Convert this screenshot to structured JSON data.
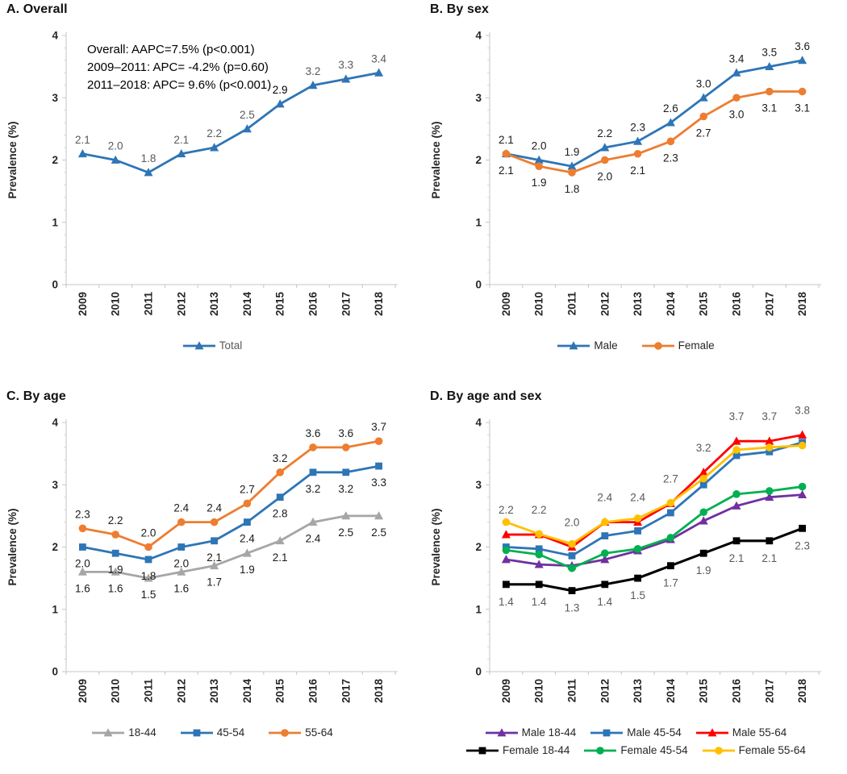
{
  "figure": {
    "y_axis_label": "Prevalence (%)",
    "x_axis_years": [
      "2009",
      "2010",
      "2011",
      "2012",
      "2013",
      "2014",
      "2015",
      "2016",
      "2017",
      "2018"
    ]
  },
  "chart_data": [
    {
      "id": "A",
      "type": "line",
      "title": "A. Overall",
      "x": [
        "2009",
        "2010",
        "2011",
        "2012",
        "2013",
        "2014",
        "2015",
        "2016",
        "2017",
        "2018"
      ],
      "ylabel": "Prevalence (%)",
      "ylim": [
        0,
        4
      ],
      "yticks": [
        0,
        1,
        2,
        3,
        4
      ],
      "grid": false,
      "legend_position": "bottom",
      "legend_text_color": "#595959",
      "annotation": [
        "Overall: AAPC=7.5% (p<0.001)",
        "2009–2011: APC= -4.2% (p=0.60)",
        "2011–2018: APC= 9.6% (p<0.001)"
      ],
      "series": [
        {
          "name": "Total",
          "color": "#2E75B6",
          "marker": "triangle",
          "values": [
            2.1,
            2.0,
            1.8,
            2.1,
            2.2,
            2.5,
            2.9,
            3.2,
            3.3,
            3.4
          ],
          "labels": [
            "2.1",
            "2.0",
            "1.8",
            "2.1",
            "2.2",
            "2.5",
            "2.9",
            "3.2",
            "3.3",
            "3.4"
          ],
          "label_offset": -13,
          "label_color": "#595959",
          "label_color_overrides": {
            "6": "#000000"
          }
        }
      ]
    },
    {
      "id": "B",
      "type": "line",
      "title": "B. By sex",
      "x": [
        "2009",
        "2010",
        "2011",
        "2012",
        "2013",
        "2014",
        "2015",
        "2016",
        "2017",
        "2018"
      ],
      "ylabel": "Prevalence (%)",
      "ylim": [
        0,
        4
      ],
      "yticks": [
        0,
        1,
        2,
        3,
        4
      ],
      "grid": false,
      "legend_position": "bottom",
      "legend_text_color": "#262626",
      "series": [
        {
          "name": "Male",
          "color": "#2E75B6",
          "marker": "triangle",
          "values": [
            2.1,
            2.0,
            1.9,
            2.2,
            2.3,
            2.6,
            3.0,
            3.4,
            3.5,
            3.6
          ],
          "labels": [
            "2.1",
            "2.0",
            "1.9",
            "2.2",
            "2.3",
            "2.6",
            "3.0",
            "3.4",
            "3.5",
            "3.6"
          ],
          "label_offset": -13,
          "label_color": "#1a1a1a"
        },
        {
          "name": "Female",
          "color": "#ED7D31",
          "marker": "circle",
          "values": [
            2.1,
            1.9,
            1.8,
            2.0,
            2.1,
            2.3,
            2.7,
            3.0,
            3.1,
            3.1
          ],
          "labels": [
            "2.1",
            "1.9",
            "1.8",
            "2.0",
            "2.1",
            "2.3",
            "2.7",
            "3.0",
            "3.1",
            "3.1"
          ],
          "label_offset": 25,
          "label_color": "#1a1a1a"
        }
      ]
    },
    {
      "id": "C",
      "type": "line",
      "title": "C. By age",
      "x": [
        "2009",
        "2010",
        "2011",
        "2012",
        "2013",
        "2014",
        "2015",
        "2016",
        "2017",
        "2018"
      ],
      "ylabel": "Prevalence (%)",
      "ylim": [
        0,
        4
      ],
      "yticks": [
        0,
        1,
        2,
        3,
        4
      ],
      "grid": false,
      "legend_position": "bottom",
      "legend_text_color": "#262626",
      "series": [
        {
          "name": "18-44",
          "color": "#A6A6A6",
          "marker": "triangle",
          "values": [
            1.6,
            1.6,
            1.5,
            1.6,
            1.7,
            1.9,
            2.1,
            2.4,
            2.5,
            2.5
          ],
          "labels": [
            "1.6",
            "1.6",
            "1.5",
            "1.6",
            "1.7",
            "1.9",
            "2.1",
            "2.4",
            "2.5",
            "2.5"
          ],
          "label_offset": 25,
          "label_color": "#1a1a1a"
        },
        {
          "name": "45-54",
          "color": "#2E75B6",
          "marker": "square",
          "values": [
            2.0,
            1.9,
            1.8,
            2.0,
            2.1,
            2.4,
            2.8,
            3.2,
            3.2,
            3.3
          ],
          "labels": [
            "2.0",
            "1.9",
            "1.8",
            "2.0",
            "2.1",
            "2.4",
            "2.8",
            "3.2",
            "3.2",
            "3.3"
          ],
          "label_offset": 25,
          "label_color": "#1a1a1a"
        },
        {
          "name": "55-64",
          "color": "#ED7D31",
          "marker": "circle",
          "values": [
            2.3,
            2.2,
            2.0,
            2.4,
            2.4,
            2.7,
            3.2,
            3.6,
            3.6,
            3.7
          ],
          "labels": [
            "2.3",
            "2.2",
            "2.0",
            "2.4",
            "2.4",
            "2.7",
            "3.2",
            "3.6",
            "3.6",
            "3.7"
          ],
          "label_offset": -13,
          "label_color": "#1a1a1a"
        }
      ]
    },
    {
      "id": "D",
      "type": "line",
      "title": "D. By age and sex",
      "x": [
        "2009",
        "2010",
        "2011",
        "2012",
        "2013",
        "2014",
        "2015",
        "2016",
        "2017",
        "2018"
      ],
      "ylabel": "Prevalence (%)",
      "ylim": [
        0,
        4
      ],
      "yticks": [
        0,
        1,
        2,
        3,
        4
      ],
      "grid": false,
      "legend_position": "bottom",
      "legend_text_color": "#262626",
      "legend_rows": [
        [
          0,
          1,
          2
        ],
        [
          3,
          4,
          5
        ]
      ],
      "series": [
        {
          "name": "Male 18-44",
          "color": "#7030A0",
          "marker": "triangle",
          "values": [
            1.8,
            1.72,
            1.7,
            1.8,
            1.94,
            2.12,
            2.42,
            2.66,
            2.8,
            2.84
          ],
          "labels": null
        },
        {
          "name": "Male 45-54",
          "color": "#2E75B6",
          "marker": "square",
          "values": [
            2.0,
            1.97,
            1.86,
            2.18,
            2.26,
            2.55,
            3.0,
            3.47,
            3.53,
            3.68
          ],
          "labels": null
        },
        {
          "name": "Male 55-64",
          "color": "#FF0000",
          "marker": "triangle",
          "values": [
            2.2,
            2.2,
            2.0,
            2.4,
            2.4,
            2.7,
            3.2,
            3.7,
            3.7,
            3.8
          ],
          "labels": [
            "2.2",
            "2.2",
            "2.0",
            "2.4",
            "2.4",
            "2.7",
            "3.2",
            "3.7",
            "3.7",
            "3.8"
          ],
          "label_offset": -26,
          "label_color": "#595959"
        },
        {
          "name": "Female 18-44",
          "color": "#000000",
          "marker": "square",
          "values": [
            1.4,
            1.4,
            1.3,
            1.4,
            1.5,
            1.7,
            1.9,
            2.1,
            2.1,
            2.3
          ],
          "labels": [
            "1.4",
            "1.4",
            "1.3",
            "1.4",
            "1.5",
            "1.7",
            "1.9",
            "2.1",
            "2.1",
            "2.3"
          ],
          "label_offset": 26,
          "label_color": "#595959"
        },
        {
          "name": "Female 45-54",
          "color": "#00B050",
          "marker": "circle",
          "values": [
            1.95,
            1.88,
            1.66,
            1.9,
            1.97,
            2.15,
            2.56,
            2.85,
            2.9,
            2.97
          ],
          "labels": null
        },
        {
          "name": "Female 55-64",
          "color": "#FFC000",
          "marker": "circle",
          "values": [
            2.4,
            2.21,
            2.05,
            2.4,
            2.46,
            2.71,
            3.1,
            3.56,
            3.6,
            3.63
          ],
          "labels": null
        }
      ]
    }
  ]
}
